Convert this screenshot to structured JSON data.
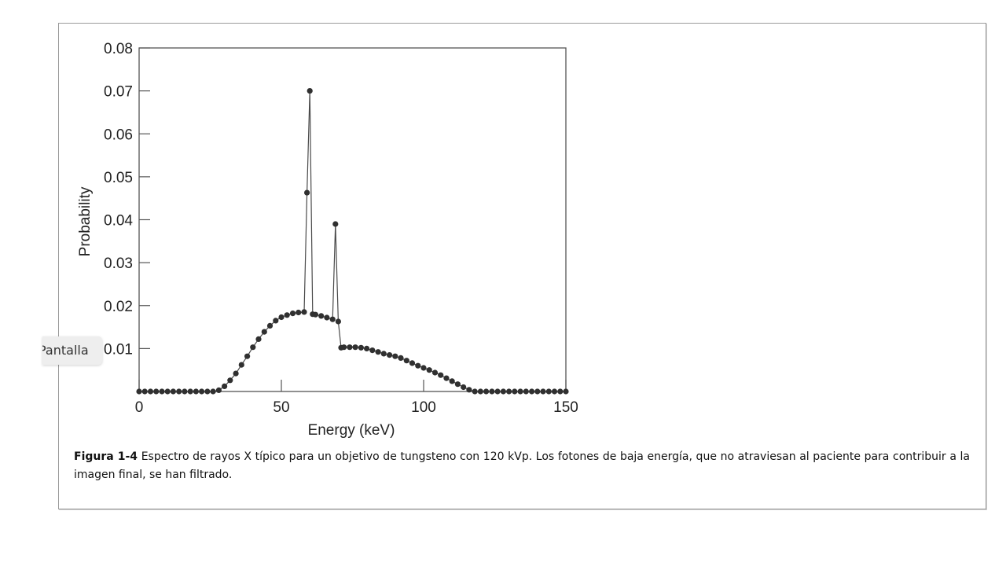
{
  "chart_data": {
    "type": "scatter",
    "xlabel": "Energy (keV)",
    "ylabel": "Probability",
    "xlim": [
      0,
      150
    ],
    "ylim": [
      0,
      0.08
    ],
    "x_ticks": [
      0,
      50,
      100,
      150
    ],
    "x_tick_labels": [
      "0",
      "50",
      "100",
      "150"
    ],
    "y_ticks": [
      0.01,
      0.02,
      0.03,
      0.04,
      0.05,
      0.06,
      0.07,
      0.08
    ],
    "y_tick_labels": [
      "0.01",
      "0.02",
      "0.03",
      "0.04",
      "0.05",
      "0.06",
      "0.07",
      "0.08"
    ],
    "grid": false,
    "series": [
      {
        "connected": true,
        "x": [
          0,
          2,
          4,
          6,
          8,
          10,
          12,
          14,
          16,
          18,
          20,
          22,
          24,
          26,
          28,
          30,
          32,
          34,
          36,
          38,
          40,
          42,
          44,
          46,
          48,
          50,
          52,
          54,
          56,
          58,
          59,
          60,
          61,
          62,
          64,
          66,
          68,
          69,
          70,
          71,
          72,
          74,
          76,
          78,
          80,
          82,
          84,
          86,
          88,
          90,
          92,
          94,
          96,
          98,
          100,
          102,
          104,
          106,
          108,
          110,
          112,
          114,
          116,
          118,
          120,
          122,
          124,
          126,
          128,
          130,
          132,
          134,
          136,
          138,
          140,
          142,
          144,
          146,
          148,
          150
        ],
        "y": [
          0,
          0,
          0,
          0,
          0,
          0,
          0,
          0,
          0,
          0,
          0,
          0,
          0,
          0,
          0.0003,
          0.0012,
          0.0026,
          0.0042,
          0.0062,
          0.0082,
          0.0103,
          0.0122,
          0.0139,
          0.0153,
          0.0165,
          0.0173,
          0.0178,
          0.0182,
          0.0184,
          0.0185,
          0.0463,
          0.07,
          0.018,
          0.0179,
          0.0176,
          0.0172,
          0.0168,
          0.039,
          0.0163,
          0.0102,
          0.0103,
          0.0103,
          0.0103,
          0.0102,
          0.01,
          0.0096,
          0.0092,
          0.0088,
          0.0085,
          0.0082,
          0.0078,
          0.0072,
          0.0066,
          0.006,
          0.0055,
          0.005,
          0.0044,
          0.0038,
          0.0031,
          0.0024,
          0.0017,
          0.001,
          0.0004,
          0,
          0,
          0,
          0,
          0,
          0,
          0,
          0,
          0,
          0,
          0,
          0,
          0,
          0,
          0,
          0,
          0
        ]
      }
    ],
    "colors": {
      "marker": "#303030",
      "line": "#4a4a4a",
      "axes": "#555555"
    }
  },
  "caption": {
    "label": "Figura 1-4",
    "text": " Espectro de rayos X típico para un objetivo de tungsteno con 120 kVp. Los fotones de baja energía, que no atraviesan al paciente para contribuir a la imagen final, se han filtrado."
  },
  "side_tab": {
    "label": "Pantalla"
  }
}
